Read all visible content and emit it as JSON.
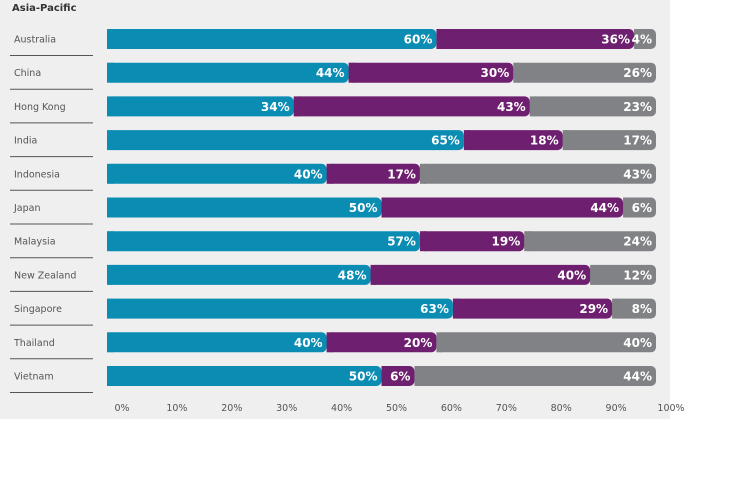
{
  "region": "Asia-Pacific",
  "colors": {
    "series1": "#0b8db3",
    "series2": "#6e1f6f",
    "series3": "#808285",
    "background": "#efefef"
  },
  "chart_data": {
    "type": "bar",
    "orientation": "horizontal",
    "stacked": true,
    "title": "Asia-Pacific",
    "categories": [
      "Australia",
      "China",
      "Hong Kong",
      "India",
      "Indonesia",
      "Japan",
      "Malaysia",
      "New Zealand",
      "Singapore",
      "Thailand",
      "Vietnam"
    ],
    "series": [
      {
        "color": "#0b8db3",
        "values": [
          60,
          44,
          34,
          65,
          40,
          50,
          57,
          48,
          63,
          40,
          50
        ]
      },
      {
        "color": "#6e1f6f",
        "values": [
          36,
          30,
          43,
          18,
          17,
          44,
          19,
          40,
          29,
          20,
          6
        ]
      },
      {
        "color": "#808285",
        "values": [
          4,
          26,
          23,
          17,
          43,
          6,
          24,
          12,
          8,
          40,
          44
        ]
      }
    ],
    "xlim": [
      0,
      100
    ],
    "xticks": [
      "0%",
      "10%",
      "20%",
      "30%",
      "40%",
      "50%",
      "60%",
      "70%",
      "80%",
      "90%",
      "100%"
    ],
    "value_suffix": "%",
    "grid": false,
    "legend": "none"
  }
}
